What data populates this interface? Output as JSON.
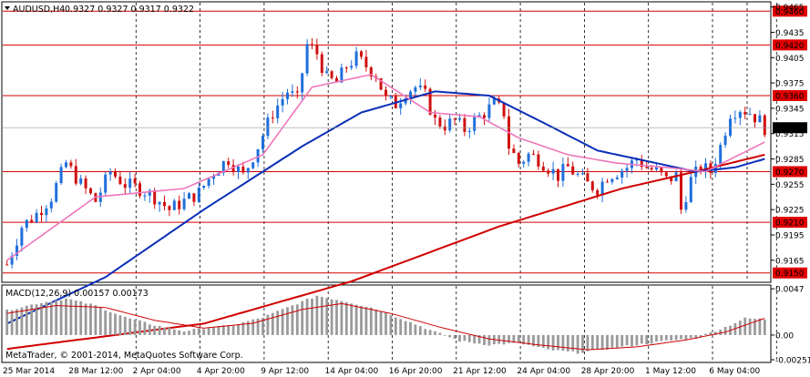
{
  "header": {
    "symbol": "AUDUSD,H4",
    "ohlc": "0.9327 0.9327 0.9317 0.9322"
  },
  "copyright": "MetaTrader, © 2001-2014, MetaQuotes Software Corp.",
  "macd_label": "MACD(12,26,9) 0.00157 0.00173",
  "chart_data": [
    {
      "type": "candlestick",
      "price_axis": {
        "range": [
          0.914,
          0.947
        ],
        "ticks": [
          "0.9465",
          "0.9435",
          "0.9405",
          "0.9375",
          "0.9345",
          "0.9315",
          "0.9285",
          "0.9255",
          "0.9225",
          "0.9195",
          "0.9165"
        ]
      },
      "current_price": "0.9322",
      "levels": [
        {
          "value": 0.946,
          "label": "0.9460"
        },
        {
          "value": 0.942,
          "label": "0.9420"
        },
        {
          "value": 0.936,
          "label": "0.9360"
        },
        {
          "value": 0.927,
          "label": "0.9270"
        },
        {
          "value": 0.921,
          "label": "0.9210"
        },
        {
          "value": 0.915,
          "label": "0.9150"
        }
      ],
      "time_labels": [
        "25 Mar 2014",
        "28 Mar 12:00",
        "2 Apr 04:00",
        "4 Apr 20:00",
        "9 Apr 12:00",
        "14 Apr 04:00",
        "16 Apr 20:00",
        "21 Apr 12:00",
        "24 Apr 04:00",
        "28 Apr 20:00",
        "1 May 12:00",
        "6 May 04:00"
      ],
      "close_path": [
        [
          0,
          0.916
        ],
        [
          3,
          0.9205
        ],
        [
          6,
          0.922
        ],
        [
          9,
          0.924
        ],
        [
          12,
          0.928
        ],
        [
          15,
          0.9255
        ],
        [
          18,
          0.9235
        ],
        [
          21,
          0.927
        ],
        [
          24,
          0.9255
        ],
        [
          27,
          0.925
        ],
        [
          30,
          0.924
        ],
        [
          33,
          0.9225
        ],
        [
          36,
          0.9235
        ],
        [
          39,
          0.9245
        ],
        [
          42,
          0.927
        ],
        [
          45,
          0.9285
        ],
        [
          48,
          0.9265
        ],
        [
          51,
          0.93
        ],
        [
          54,
          0.934
        ],
        [
          57,
          0.9365
        ],
        [
          59,
          0.9355
        ],
        [
          61,
          0.942
        ],
        [
          63,
          0.941
        ],
        [
          65,
          0.938
        ],
        [
          67,
          0.9375
        ],
        [
          69,
          0.9395
        ],
        [
          71,
          0.9405
        ],
        [
          73,
          0.9395
        ],
        [
          75,
          0.9385
        ],
        [
          77,
          0.9355
        ],
        [
          79,
          0.935
        ],
        [
          81,
          0.9365
        ],
        [
          83,
          0.937
        ],
        [
          85,
          0.936
        ],
        [
          87,
          0.933
        ],
        [
          89,
          0.9325
        ],
        [
          91,
          0.933
        ],
        [
          93,
          0.932
        ],
        [
          95,
          0.933
        ],
        [
          97,
          0.934
        ],
        [
          99,
          0.935
        ],
        [
          101,
          0.934
        ],
        [
          102,
          0.93
        ],
        [
          104,
          0.928
        ],
        [
          106,
          0.929
        ],
        [
          108,
          0.9285
        ],
        [
          110,
          0.9275
        ],
        [
          112,
          0.9265
        ],
        [
          114,
          0.9275
        ],
        [
          116,
          0.9265
        ],
        [
          118,
          0.9255
        ],
        [
          120,
          0.925
        ],
        [
          122,
          0.9265
        ],
        [
          124,
          0.927
        ],
        [
          126,
          0.9275
        ],
        [
          128,
          0.9285
        ],
        [
          130,
          0.9275
        ],
        [
          132,
          0.927
        ],
        [
          134,
          0.926
        ],
        [
          136,
          0.9265
        ],
        [
          137,
          0.9225
        ],
        [
          139,
          0.926
        ],
        [
          141,
          0.9275
        ],
        [
          143,
          0.927
        ],
        [
          145,
          0.93
        ],
        [
          147,
          0.934
        ],
        [
          149,
          0.9345
        ],
        [
          151,
          0.934
        ],
        [
          153,
          0.933
        ],
        [
          154,
          0.9322
        ]
      ],
      "ma_slow_red": [
        [
          0,
          0.906
        ],
        [
          40,
          0.909
        ],
        [
          70,
          0.914
        ],
        [
          100,
          0.9205
        ],
        [
          125,
          0.925
        ],
        [
          140,
          0.927
        ],
        [
          154,
          0.929
        ]
      ],
      "ma_mid_blue": [
        [
          0,
          0.909
        ],
        [
          20,
          0.9145
        ],
        [
          40,
          0.9225
        ],
        [
          60,
          0.93
        ],
        [
          72,
          0.934
        ],
        [
          87,
          0.9365
        ],
        [
          98,
          0.936
        ],
        [
          110,
          0.9325
        ],
        [
          120,
          0.9295
        ],
        [
          132,
          0.928
        ],
        [
          140,
          0.927
        ],
        [
          148,
          0.9275
        ],
        [
          154,
          0.9285
        ]
      ],
      "ma_fast_pink": [
        [
          0,
          0.9165
        ],
        [
          18,
          0.924
        ],
        [
          36,
          0.925
        ],
        [
          52,
          0.929
        ],
        [
          62,
          0.937
        ],
        [
          74,
          0.9385
        ],
        [
          86,
          0.934
        ],
        [
          96,
          0.9335
        ],
        [
          104,
          0.931
        ],
        [
          114,
          0.929
        ],
        [
          124,
          0.928
        ],
        [
          134,
          0.9275
        ],
        [
          142,
          0.927
        ],
        [
          154,
          0.9305
        ]
      ]
    },
    {
      "type": "bar",
      "name": "MACD",
      "y_ticks": [
        "0.0047",
        "0.00",
        "-0.00251"
      ],
      "range": [
        -0.0026,
        0.0049
      ],
      "histogram_path": [
        [
          0,
          0.0025
        ],
        [
          6,
          0.0032
        ],
        [
          12,
          0.0037
        ],
        [
          18,
          0.003
        ],
        [
          24,
          0.0018
        ],
        [
          30,
          0.001
        ],
        [
          36,
          0.0004
        ],
        [
          40,
          0.0007
        ],
        [
          46,
          0.001
        ],
        [
          52,
          0.0018
        ],
        [
          58,
          0.003
        ],
        [
          63,
          0.004
        ],
        [
          68,
          0.0035
        ],
        [
          74,
          0.0028
        ],
        [
          80,
          0.0017
        ],
        [
          86,
          0.0005
        ],
        [
          92,
          -0.0006
        ],
        [
          98,
          -0.001
        ],
        [
          104,
          -0.0008
        ],
        [
          110,
          -0.0015
        ],
        [
          116,
          -0.0018
        ],
        [
          122,
          -0.0014
        ],
        [
          128,
          -0.001
        ],
        [
          134,
          -0.0006
        ],
        [
          140,
          -0.0003
        ],
        [
          146,
          0.0008
        ],
        [
          150,
          0.0017
        ],
        [
          154,
          0.0016
        ]
      ],
      "signal_path": [
        [
          0,
          0.0022
        ],
        [
          10,
          0.003
        ],
        [
          20,
          0.0028
        ],
        [
          30,
          0.0015
        ],
        [
          40,
          0.0007
        ],
        [
          50,
          0.0012
        ],
        [
          60,
          0.0026
        ],
        [
          68,
          0.0032
        ],
        [
          78,
          0.0022
        ],
        [
          88,
          0.0008
        ],
        [
          98,
          -0.0004
        ],
        [
          108,
          -0.001
        ],
        [
          118,
          -0.0015
        ],
        [
          128,
          -0.0012
        ],
        [
          138,
          -0.0005
        ],
        [
          146,
          0.0003
        ],
        [
          154,
          0.0017
        ]
      ]
    }
  ]
}
